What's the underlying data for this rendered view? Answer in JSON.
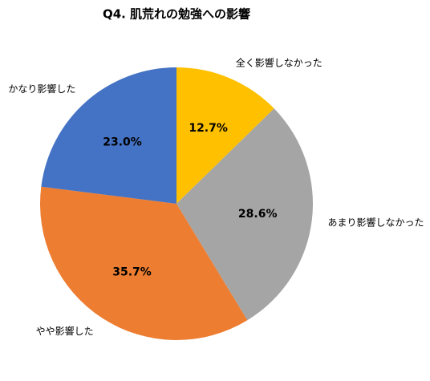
{
  "chart_data": {
    "type": "pie",
    "title": "Q4. 肌荒れの勉強への影響",
    "categories": [
      "全く影響しなかった",
      "あまり影響しなかった",
      "やや影響した",
      "かなり影響した"
    ],
    "values": [
      12.7,
      28.6,
      35.7,
      23.0
    ],
    "value_labels": [
      "12.7%",
      "28.6%",
      "35.7%",
      "23.0%"
    ],
    "colors": [
      "#ffc000",
      "#a5a5a5",
      "#ed7d31",
      "#4472c4"
    ]
  }
}
